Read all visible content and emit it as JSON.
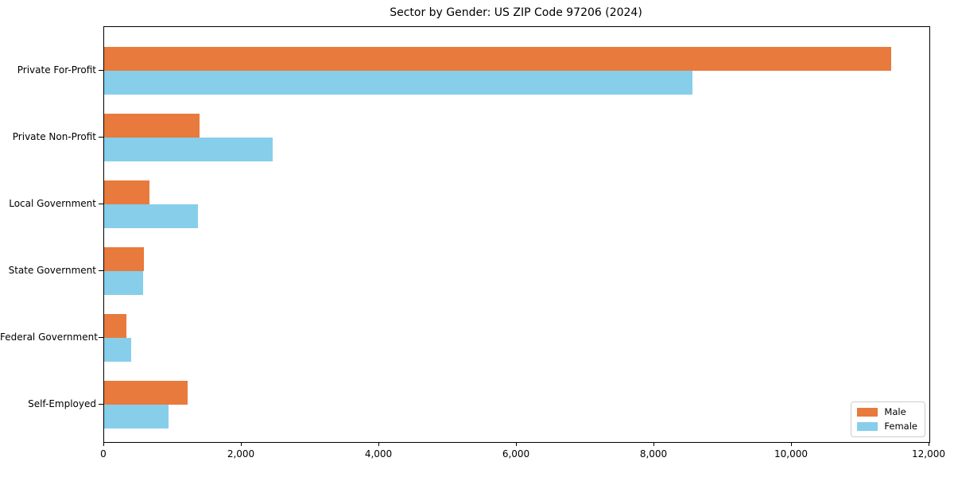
{
  "chart_data": {
    "type": "bar",
    "orientation": "horizontal",
    "title": "Sector by Gender: US ZIP Code 97206 (2024)",
    "categories": [
      "Private For-Profit",
      "Private Non-Profit",
      "Local Government",
      "State Government",
      "Federal Government",
      "Self-Employed"
    ],
    "series": [
      {
        "name": "Male",
        "color": "#E87A3D",
        "values": [
          11450,
          1390,
          660,
          580,
          320,
          1210
        ]
      },
      {
        "name": "Female",
        "color": "#87CEEB",
        "values": [
          8550,
          2450,
          1360,
          570,
          390,
          940
        ]
      }
    ],
    "xlabel": "",
    "ylabel": "",
    "xlim": [
      0,
      12000
    ],
    "x_ticks": [
      0,
      2000,
      4000,
      6000,
      8000,
      10000,
      12000
    ],
    "x_tick_labels": [
      "0",
      "2,000",
      "4,000",
      "6,000",
      "8,000",
      "10,000",
      "12,000"
    ],
    "grid": false,
    "legend_position": "lower right",
    "spine_color": "#000000",
    "background_color": "#ffffff"
  }
}
